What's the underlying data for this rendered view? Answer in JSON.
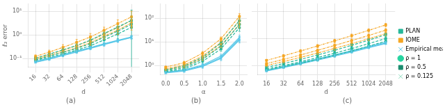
{
  "chart_data": [
    {
      "type": "line",
      "title": "(a)",
      "xlabel": "d",
      "ylabel": "ℓ₂ error",
      "log": true,
      "grid": true,
      "xlim": [
        11,
        3000
      ],
      "ylim": [
        0.045,
        20
      ],
      "xticks": [
        16,
        32,
        64,
        128,
        256,
        512,
        1024,
        2048
      ],
      "yticks": [
        {
          "value": 0.1,
          "label": "10⁻¹"
        },
        {
          "value": 1,
          "label": "10⁰"
        },
        {
          "value": 10,
          "label": "10¹"
        }
      ],
      "series": [
        {
          "name": "PLAN",
          "color": "#26b89a",
          "line_style": "dashed",
          "marker": "square",
          "x": [
            16,
            32,
            64,
            128,
            256,
            512,
            1024,
            2048
          ],
          "values": [
            0.085,
            0.115,
            0.16,
            0.23,
            0.35,
            0.62,
            1.1,
            2.1
          ],
          "yerr": [
            0.01,
            0.02,
            0.03,
            0.05,
            0.09,
            0.18,
            0.4,
            9.0
          ]
        },
        {
          "name": "PLAN",
          "color": "#26b89a",
          "line_style": "dashed",
          "marker": "square",
          "x": [
            16,
            32,
            64,
            128,
            256,
            512,
            1024,
            2048
          ],
          "values": [
            0.09,
            0.13,
            0.185,
            0.27,
            0.43,
            0.8,
            1.45,
            2.8
          ],
          "yerr": [
            0.01,
            0.02,
            0.04,
            0.07,
            0.11,
            0.22,
            0.45,
            0.9
          ]
        },
        {
          "name": "PLAN",
          "color": "#26b89a",
          "line_style": "dashed",
          "marker": "square",
          "x": [
            16,
            32,
            64,
            128,
            256,
            512,
            1024,
            2048
          ],
          "values": [
            0.105,
            0.155,
            0.235,
            0.36,
            0.6,
            1.15,
            2.15,
            4.1
          ],
          "yerr": [
            0.01,
            0.02,
            0.05,
            0.08,
            0.13,
            0.28,
            0.55,
            1.1
          ]
        },
        {
          "name": "IOME",
          "color": "#f5a623",
          "line_style": "dashdot",
          "marker": "square",
          "x": [
            16,
            32,
            64,
            128,
            256,
            512,
            1024,
            2048
          ],
          "values": [
            0.095,
            0.135,
            0.19,
            0.29,
            0.47,
            0.88,
            1.6,
            3.2
          ],
          "yerr": [
            0.01,
            0.02,
            0.04,
            0.07,
            0.11,
            0.22,
            0.55,
            1.1
          ]
        },
        {
          "name": "IOME",
          "color": "#f5a623",
          "line_style": "dashdot",
          "marker": "square",
          "x": [
            16,
            32,
            64,
            128,
            256,
            512,
            1024,
            2048
          ],
          "values": [
            0.105,
            0.152,
            0.225,
            0.355,
            0.58,
            1.1,
            2.05,
            4.1
          ],
          "yerr": [
            0.01,
            0.03,
            0.06,
            0.09,
            0.17,
            0.33,
            0.65,
            1.6
          ]
        },
        {
          "name": "IOME",
          "color": "#f5a623",
          "line_style": "dashdot",
          "marker": "square",
          "x": [
            16,
            32,
            64,
            128,
            256,
            512,
            1024,
            2048
          ],
          "values": [
            0.125,
            0.19,
            0.3,
            0.49,
            0.82,
            1.58,
            3.0,
            5.8
          ],
          "yerr": [
            0.02,
            0.04,
            0.09,
            0.16,
            0.33,
            0.55,
            1.3,
            4.2
          ]
        },
        {
          "name": "Empirical mean",
          "color": "#5bc8e8",
          "line_style": "solid",
          "marker": "x",
          "x": [
            16,
            32,
            64,
            128,
            256,
            512,
            1024,
            2048
          ],
          "values": [
            0.07,
            0.095,
            0.135,
            0.19,
            0.27,
            0.39,
            0.56,
            0.78
          ],
          "yerr": [
            0.005,
            0.01,
            0.015,
            0.022,
            0.033,
            0.055,
            0.075,
            0.11
          ]
        },
        {
          "name": "Empirical mean",
          "color": "#5bc8e8",
          "line_style": "solid",
          "marker": "x",
          "x": [
            16,
            32,
            64,
            128,
            256,
            512,
            1024,
            2048
          ],
          "values": [
            0.073,
            0.099,
            0.14,
            0.198,
            0.282,
            0.405,
            0.575,
            0.8
          ],
          "yerr": [
            0.005,
            0.01,
            0.015,
            0.022,
            0.033,
            0.055,
            0.075,
            0.11
          ]
        },
        {
          "name": "Empirical mean",
          "color": "#5bc8e8",
          "line_style": "solid",
          "marker": "x",
          "x": [
            16,
            32,
            64,
            128,
            256,
            512,
            1024,
            2048
          ],
          "values": [
            0.077,
            0.105,
            0.149,
            0.21,
            0.298,
            0.425,
            0.6,
            0.83
          ],
          "yerr": [
            0.005,
            0.01,
            0.015,
            0.022,
            0.033,
            0.055,
            0.075,
            0.11
          ]
        }
      ]
    },
    {
      "type": "line",
      "title": "(b)",
      "xlabel": "α",
      "log": "y",
      "grid": true,
      "xlim": [
        -0.15,
        2.2
      ],
      "ylim": [
        0.4,
        400
      ],
      "xticks": [
        {
          "value": 0,
          "label": "0.0"
        },
        0.5,
        {
          "value": 1.0,
          "label": "1.0"
        },
        1.5,
        {
          "value": 2.0,
          "label": "2.0"
        }
      ],
      "yticks": [
        {
          "value": 1,
          "label": "10⁰"
        },
        {
          "value": 10,
          "label": "10¹"
        },
        {
          "value": 100,
          "label": "10²"
        }
      ],
      "series": [
        {
          "name": "PLAN",
          "color": "#26b89a",
          "line_style": "dashed",
          "marker": "square",
          "x": [
            0,
            0.5,
            1.0,
            1.5,
            2.0
          ],
          "values": [
            0.55,
            0.7,
            1.5,
            5.0,
            40.0
          ],
          "yerr": [
            0.05,
            0.1,
            0.3,
            1.0,
            12.0
          ]
        },
        {
          "name": "PLAN",
          "color": "#26b89a",
          "line_style": "dashed",
          "marker": "square",
          "x": [
            0,
            0.5,
            1.0,
            1.5,
            2.0
          ],
          "values": [
            0.6,
            0.8,
            1.8,
            6.5,
            55.0
          ],
          "yerr": [
            0.05,
            0.12,
            0.35,
            1.3,
            16.0
          ]
        },
        {
          "name": "PLAN",
          "color": "#26b89a",
          "line_style": "dashed",
          "marker": "square",
          "x": [
            0,
            0.5,
            1.0,
            1.5,
            2.0
          ],
          "values": [
            0.65,
            0.95,
            2.2,
            9.0,
            80.0
          ],
          "yerr": [
            0.05,
            0.15,
            0.42,
            1.8,
            22.0
          ]
        },
        {
          "name": "IOME",
          "color": "#f5a623",
          "line_style": "dashdot",
          "marker": "square",
          "x": [
            0,
            0.5,
            1.0,
            1.5,
            2.0
          ],
          "values": [
            0.65,
            0.9,
            2.0,
            7.0,
            55.0
          ],
          "yerr": [
            0.06,
            0.14,
            0.38,
            1.4,
            16.0
          ]
        },
        {
          "name": "IOME",
          "color": "#f5a623",
          "line_style": "dashdot",
          "marker": "square",
          "x": [
            0,
            0.5,
            1.0,
            1.5,
            2.0
          ],
          "values": [
            0.72,
            1.05,
            2.5,
            9.5,
            78.0
          ],
          "yerr": [
            0.06,
            0.16,
            0.46,
            1.9,
            22.0
          ]
        },
        {
          "name": "IOME",
          "color": "#f5a623",
          "line_style": "dashdot",
          "marker": "square",
          "x": [
            0,
            0.5,
            1.0,
            1.5,
            2.0
          ],
          "values": [
            0.85,
            1.3,
            3.3,
            13.5,
            120.0
          ],
          "yerr": [
            0.07,
            0.2,
            0.6,
            2.7,
            35.0
          ]
        },
        {
          "name": "Empirical mean",
          "color": "#5bc8e8",
          "line_style": "solid",
          "marker": "x",
          "x": [
            0,
            0.5,
            1.0,
            1.5,
            2.0
          ],
          "values": [
            0.48,
            0.58,
            0.9,
            2.0,
            12.0
          ],
          "yerr": [
            0.04,
            0.07,
            0.14,
            0.4,
            3.0
          ]
        },
        {
          "name": "Empirical mean",
          "color": "#5bc8e8",
          "line_style": "solid",
          "marker": "x",
          "x": [
            0,
            0.5,
            1.0,
            1.5,
            2.0
          ],
          "values": [
            0.5,
            0.61,
            0.96,
            2.2,
            13.5
          ],
          "yerr": [
            0.04,
            0.07,
            0.15,
            0.44,
            3.3
          ]
        },
        {
          "name": "Empirical mean",
          "color": "#5bc8e8",
          "line_style": "solid",
          "marker": "x",
          "x": [
            0,
            0.5,
            1.0,
            1.5,
            2.0
          ],
          "values": [
            0.52,
            0.65,
            1.04,
            2.5,
            15.5
          ],
          "yerr": [
            0.04,
            0.08,
            0.16,
            0.5,
            3.8
          ]
        }
      ]
    },
    {
      "type": "line",
      "title": "(c)",
      "xlabel": "d",
      "log": true,
      "grid": true,
      "tick_labels": "x",
      "legend": "right",
      "xlim": [
        11,
        3000
      ],
      "ylim": [
        0.045,
        20
      ],
      "xticks": [
        16,
        32,
        64,
        128,
        256,
        512,
        1024,
        2048
      ],
      "yticks": [
        0.1,
        1,
        10
      ],
      "series": [
        {
          "name": "PLAN",
          "color": "#26b89a",
          "line_style": "dashed",
          "marker": "square",
          "x": [
            16,
            32,
            64,
            128,
            256,
            512,
            1024,
            2048
          ],
          "values": [
            0.068,
            0.09,
            0.122,
            0.168,
            0.24,
            0.35,
            0.52,
            0.8
          ],
          "yerr": [
            0.005,
            0.01,
            0.015,
            0.022,
            0.033,
            0.052,
            0.083,
            0.13
          ]
        },
        {
          "name": "PLAN",
          "color": "#26b89a",
          "line_style": "dashed",
          "marker": "square",
          "x": [
            16,
            32,
            64,
            128,
            256,
            512,
            1024,
            2048
          ],
          "values": [
            0.074,
            0.1,
            0.138,
            0.196,
            0.285,
            0.425,
            0.645,
            1.0
          ],
          "yerr": [
            0.005,
            0.01,
            0.016,
            0.025,
            0.04,
            0.063,
            0.1,
            0.16
          ]
        },
        {
          "name": "PLAN",
          "color": "#26b89a",
          "line_style": "dashed",
          "marker": "square",
          "x": [
            16,
            32,
            64,
            128,
            256,
            512,
            1024,
            2048
          ],
          "values": [
            0.085,
            0.118,
            0.168,
            0.245,
            0.365,
            0.56,
            0.87,
            1.38
          ],
          "yerr": [
            0.005,
            0.011,
            0.02,
            0.031,
            0.052,
            0.084,
            0.135,
            0.21
          ]
        },
        {
          "name": "IOME",
          "color": "#f5a623",
          "line_style": "dashdot",
          "marker": "square",
          "x": [
            16,
            32,
            64,
            128,
            256,
            512,
            1024,
            2048
          ],
          "values": [
            0.1,
            0.14,
            0.2,
            0.29,
            0.43,
            0.645,
            0.98,
            1.52
          ],
          "yerr": [
            0.01,
            0.016,
            0.024,
            0.038,
            0.063,
            0.097,
            0.15,
            0.24
          ]
        },
        {
          "name": "IOME",
          "color": "#f5a623",
          "line_style": "dashdot",
          "marker": "square",
          "x": [
            16,
            32,
            64,
            128,
            256,
            512,
            1024,
            2048
          ],
          "values": [
            0.118,
            0.168,
            0.245,
            0.365,
            0.555,
            0.845,
            1.3,
            2.04
          ],
          "yerr": [
            0.011,
            0.019,
            0.03,
            0.047,
            0.079,
            0.123,
            0.19,
            0.31
          ]
        },
        {
          "name": "IOME",
          "color": "#f5a623",
          "line_style": "dashdot",
          "marker": "square",
          "x": [
            16,
            32,
            64,
            128,
            256,
            512,
            1024,
            2048
          ],
          "values": [
            0.155,
            0.228,
            0.345,
            0.53,
            0.82,
            1.28,
            2.01,
            3.2
          ],
          "yerr": [
            0.013,
            0.025,
            0.042,
            0.069,
            0.115,
            0.181,
            0.284,
            0.45
          ]
        },
        {
          "name": "Empirical mean",
          "color": "#5bc8e8",
          "line_style": "solid",
          "marker": "x",
          "x": [
            16,
            32,
            64,
            128,
            256,
            512,
            1024,
            2048
          ],
          "values": [
            0.062,
            0.084,
            0.115,
            0.158,
            0.222,
            0.316,
            0.458,
            0.654
          ],
          "yerr": [
            0.004,
            0.006,
            0.009,
            0.013,
            0.019,
            0.027,
            0.039,
            0.057
          ]
        },
        {
          "name": "Empirical mean",
          "color": "#5bc8e8",
          "line_style": "solid",
          "marker": "x",
          "x": [
            16,
            32,
            64,
            128,
            256,
            512,
            1024,
            2048
          ],
          "values": [
            0.064,
            0.087,
            0.12,
            0.165,
            0.232,
            0.33,
            0.476,
            0.678
          ],
          "yerr": [
            0.004,
            0.006,
            0.009,
            0.013,
            0.019,
            0.027,
            0.039,
            0.057
          ]
        },
        {
          "name": "Empirical mean",
          "color": "#5bc8e8",
          "line_style": "solid",
          "marker": "x",
          "x": [
            16,
            32,
            64,
            128,
            256,
            512,
            1024,
            2048
          ],
          "values": [
            0.067,
            0.092,
            0.128,
            0.176,
            0.248,
            0.353,
            0.512,
            0.73
          ],
          "yerr": [
            0.004,
            0.006,
            0.009,
            0.013,
            0.019,
            0.027,
            0.039,
            0.057
          ]
        }
      ],
      "groups": [
        {
          "name": "ρ = 1",
          "color": "#26d4a0",
          "marker": "circle"
        },
        {
          "name": "ρ = 0.5",
          "color": "#1a8c6e",
          "marker": "square"
        },
        {
          "name": "ρ = 0.125",
          "color": "#90ddc0",
          "marker": "x"
        }
      ]
    }
  ]
}
